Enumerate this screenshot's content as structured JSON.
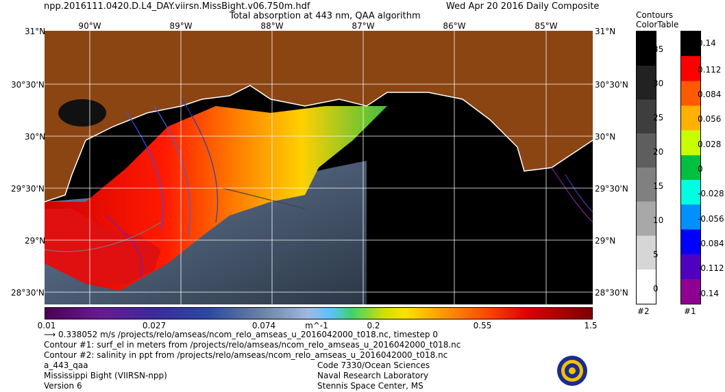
{
  "header": {
    "filename": "npp.2016111.0420.D.L4_DAY.viirsn.MissBight.v06.750m.hdf",
    "product": "Total absorption at 443 nm, QAA algorithm",
    "date": "Wed Apr 20 2016 Daily Composite"
  },
  "map": {
    "lon_labels": [
      "90°W",
      "89°W",
      "88°W",
      "87°W",
      "86°W",
      "85°W"
    ],
    "lat_labels": [
      "31°N",
      "30°30'N",
      "30°N",
      "29°30'N",
      "29°N",
      "28°30'N"
    ],
    "colors": {
      "land": "#8B4513",
      "no_data": "#000000",
      "coastline": "#ffffff"
    }
  },
  "colorbar": {
    "ticks": [
      "0.01",
      "0.027",
      "0.074",
      "0.2",
      "0.55",
      "1.5"
    ],
    "unit": "m^-1"
  },
  "contours_colortable": {
    "title_line1": "Contours",
    "title_line2": "ColorTable",
    "bar2": {
      "labels": [
        "35",
        "30",
        "25",
        "20",
        "15",
        "10",
        "5",
        "0"
      ],
      "id": "#2"
    },
    "bar1": {
      "labels": [
        "0.14",
        "0.112",
        "0.084",
        "0.056",
        "0.028",
        "0",
        "-0.028",
        "-0.056",
        "-0.084",
        "-0.112",
        "-0.14"
      ],
      "id": "#1"
    }
  },
  "footer": {
    "vector_line": "0.338052 m/s /projects/relo/amseas/ncom_relo_amseas_u_2016042000_t018.nc, timestep 0",
    "contour1": "Contour #1: surf_el in meters from /projects/relo/amseas/ncom_relo_amseas_u_2016042000_t018.nc",
    "contour2": "Contour #2: salinity in ppt from /projects/relo/amseas/ncom_relo_amseas_u_2016042000_t018.nc",
    "product_code": "a_443_qaa",
    "region": "Mississippi Bight (VIIRSN-npp)",
    "version": "Version 6",
    "org1": "Code 7330/Ocean Sciences",
    "org2": "Naval Research Laboratory",
    "org3": "Stennis Space Center, MS"
  }
}
